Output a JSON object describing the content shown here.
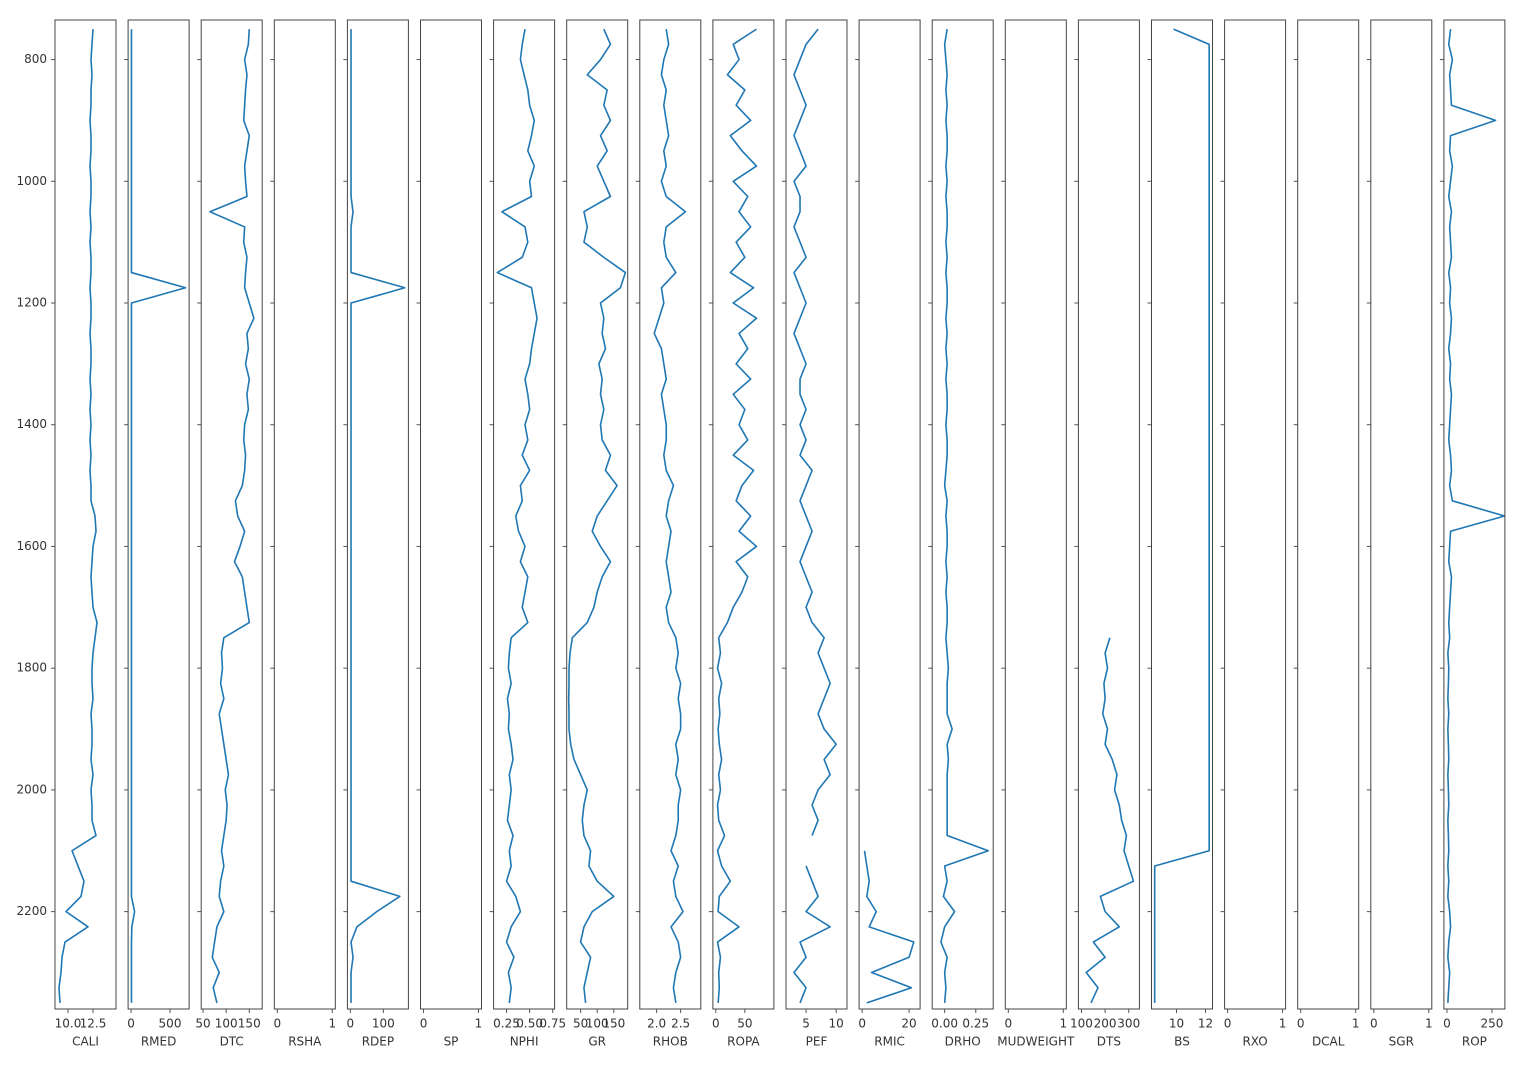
{
  "chart_data": {
    "type": "well_log",
    "color": "#1f77b4",
    "invert_y": true,
    "ylim": [
      735,
      2360
    ],
    "yticks": [
      800,
      1000,
      1200,
      1400,
      1600,
      1800,
      2000,
      2200
    ],
    "depth": [
      750,
      775,
      800,
      825,
      850,
      875,
      900,
      925,
      950,
      975,
      1000,
      1025,
      1050,
      1075,
      1100,
      1125,
      1150,
      1175,
      1200,
      1225,
      1250,
      1275,
      1300,
      1325,
      1350,
      1375,
      1400,
      1425,
      1450,
      1475,
      1500,
      1525,
      1550,
      1575,
      1600,
      1625,
      1650,
      1675,
      1700,
      1725,
      1750,
      1775,
      1800,
      1825,
      1850,
      1875,
      1900,
      1925,
      1950,
      1975,
      2000,
      2025,
      2050,
      2075,
      2100,
      2125,
      2150,
      2175,
      2200,
      2225,
      2250,
      2275,
      2300,
      2325,
      2350
    ],
    "tracks": [
      {
        "name": "CALI",
        "xlim": [
          8.7,
          14.8
        ],
        "xticks": [
          {
            "value": 10,
            "label": "10.0"
          },
          12.5
        ],
        "values": [
          12.5,
          12.4,
          12.3,
          12.4,
          12.3,
          12.3,
          12.2,
          12.3,
          12.3,
          12.2,
          12.3,
          12.3,
          12.2,
          12.3,
          12.2,
          12.3,
          12.3,
          12.2,
          12.3,
          12.3,
          12.2,
          12.3,
          12.3,
          12.2,
          12.3,
          12.2,
          12.3,
          12.2,
          12.3,
          12.2,
          12.3,
          12.3,
          12.7,
          12.8,
          12.5,
          12.4,
          12.3,
          12.4,
          12.5,
          12.9,
          12.7,
          12.5,
          12.4,
          12.4,
          12.5,
          12.3,
          12.4,
          12.4,
          12.3,
          12.5,
          12.3,
          12.4,
          12.4,
          12.8,
          10.4,
          11.0,
          11.6,
          11.3,
          9.8,
          12.0,
          9.7,
          9.4,
          9.3,
          9.1,
          9.2
        ]
      },
      {
        "name": "RMED",
        "xlim": [
          -38,
          745
        ],
        "xticks": [
          0,
          500
        ],
        "values": [
          5,
          5,
          5,
          5,
          5,
          5,
          5,
          5,
          5,
          5,
          5,
          5,
          5,
          5,
          5,
          5,
          5,
          700,
          5,
          5,
          5,
          5,
          5,
          5,
          5,
          5,
          5,
          5,
          5,
          5,
          5,
          5,
          5,
          5,
          5,
          5,
          5,
          5,
          5,
          5,
          5,
          5,
          5,
          5,
          5,
          5,
          5,
          5,
          5,
          5,
          5,
          5,
          5,
          5,
          5,
          5,
          5,
          5,
          45,
          10,
          5,
          5,
          5,
          5,
          5
        ]
      },
      {
        "name": "DTC",
        "xlim": [
          46,
          178
        ],
        "xticks": [
          50,
          100,
          150
        ],
        "values": [
          150,
          148,
          140,
          145,
          142,
          140,
          138,
          150,
          145,
          140,
          142,
          145,
          65,
          140,
          138,
          145,
          142,
          140,
          150,
          160,
          145,
          148,
          142,
          150,
          145,
          148,
          140,
          138,
          142,
          140,
          135,
          120,
          125,
          140,
          130,
          118,
          135,
          140,
          145,
          150,
          95,
          90,
          92,
          88,
          95,
          85,
          90,
          95,
          100,
          105,
          98,
          102,
          100,
          95,
          90,
          95,
          88,
          85,
          95,
          80,
          75,
          70,
          85,
          72,
          80
        ]
      },
      {
        "name": "RSHA",
        "xlim": [
          -0.055,
          1.055
        ],
        "xticks": [
          0,
          1
        ]
      },
      {
        "name": "RDEP",
        "xlim": [
          -9,
          176
        ],
        "xticks": [
          0,
          100
        ],
        "values": [
          2,
          2,
          2,
          2,
          2,
          2,
          2,
          2,
          2,
          2,
          2,
          2,
          8,
          2,
          2,
          2,
          2,
          165,
          2,
          2,
          2,
          2,
          2,
          2,
          2,
          2,
          2,
          2,
          2,
          2,
          2,
          2,
          2,
          2,
          2,
          2,
          2,
          2,
          2,
          2,
          2,
          2,
          2,
          2,
          2,
          2,
          2,
          2,
          2,
          2,
          2,
          2,
          2,
          2,
          2,
          2,
          2,
          150,
          80,
          20,
          2,
          8,
          2,
          2,
          2
        ]
      },
      {
        "name": "SP",
        "xlim": [
          -0.055,
          1.055
        ],
        "xticks": [
          0,
          1
        ]
      },
      {
        "name": "NPHI",
        "xlim": [
          0.11,
          0.77
        ],
        "xticks": [
          0.25,
          {
            "value": 0.5,
            "label": "0.50"
          },
          0.75
        ],
        "values": [
          0.45,
          0.42,
          0.4,
          0.44,
          0.48,
          0.5,
          0.55,
          0.52,
          0.48,
          0.55,
          0.5,
          0.52,
          0.2,
          0.45,
          0.48,
          0.42,
          0.15,
          0.52,
          0.55,
          0.58,
          0.55,
          0.52,
          0.5,
          0.45,
          0.48,
          0.5,
          0.45,
          0.48,
          0.42,
          0.5,
          0.4,
          0.42,
          0.35,
          0.38,
          0.45,
          0.4,
          0.48,
          0.45,
          0.42,
          0.48,
          0.3,
          0.28,
          0.27,
          0.3,
          0.26,
          0.28,
          0.27,
          0.3,
          0.32,
          0.28,
          0.3,
          0.28,
          0.26,
          0.32,
          0.28,
          0.3,
          0.25,
          0.35,
          0.4,
          0.3,
          0.25,
          0.33,
          0.27,
          0.3,
          0.28
        ]
      },
      {
        "name": "GR",
        "xlim": [
          8,
          192
        ],
        "xticks": [
          50,
          100,
          150
        ],
        "values": [
          120,
          140,
          110,
          70,
          130,
          120,
          140,
          110,
          130,
          100,
          120,
          140,
          60,
          70,
          60,
          120,
          185,
          170,
          110,
          120,
          115,
          125,
          105,
          115,
          110,
          120,
          110,
          115,
          140,
          125,
          160,
          130,
          100,
          85,
          110,
          140,
          115,
          100,
          90,
          70,
          25,
          18,
          15,
          15,
          14,
          15,
          15,
          20,
          30,
          50,
          70,
          60,
          55,
          60,
          80,
          75,
          100,
          150,
          85,
          60,
          50,
          80,
          70,
          60,
          65
        ]
      },
      {
        "name": "RHOB",
        "xlim": [
          1.65,
          2.92
        ],
        "xticks": [
          {
            "value": 2,
            "label": "2.0"
          },
          2.5
        ],
        "values": [
          2.2,
          2.25,
          2.15,
          2.1,
          2.2,
          2.15,
          2.2,
          2.25,
          2.15,
          2.2,
          2.1,
          2.2,
          2.6,
          2.2,
          2.15,
          2.2,
          2.4,
          2.1,
          2.15,
          2.05,
          1.95,
          2.1,
          2.15,
          2.2,
          2.1,
          2.15,
          2.2,
          2.2,
          2.15,
          2.2,
          2.35,
          2.25,
          2.2,
          2.3,
          2.25,
          2.2,
          2.25,
          2.3,
          2.2,
          2.25,
          2.4,
          2.45,
          2.4,
          2.5,
          2.45,
          2.5,
          2.5,
          2.4,
          2.45,
          2.4,
          2.5,
          2.45,
          2.45,
          2.4,
          2.3,
          2.45,
          2.35,
          2.4,
          2.55,
          2.3,
          2.45,
          2.5,
          2.4,
          2.35,
          2.4
        ]
      },
      {
        "name": "ROPA",
        "xlim": [
          -5,
          100
        ],
        "xticks": [
          0,
          50
        ],
        "values": [
          70,
          30,
          40,
          20,
          50,
          35,
          60,
          25,
          45,
          70,
          30,
          55,
          40,
          60,
          35,
          50,
          25,
          65,
          30,
          70,
          40,
          55,
          35,
          60,
          30,
          50,
          40,
          55,
          30,
          65,
          45,
          35,
          60,
          40,
          70,
          35,
          55,
          45,
          30,
          20,
          5,
          8,
          3,
          10,
          5,
          7,
          4,
          6,
          10,
          5,
          8,
          3,
          5,
          15,
          3,
          10,
          25,
          6,
          4,
          40,
          3,
          8,
          5,
          6,
          4
        ]
      },
      {
        "name": "PEF",
        "xlim": [
          1.67,
          11.8
        ],
        "xticks": [
          5,
          10
        ],
        "values": [
          7,
          5,
          4,
          3,
          4,
          5,
          4,
          3,
          4,
          5,
          3,
          4,
          4,
          3,
          4,
          5,
          3,
          4,
          5,
          4,
          3,
          4,
          5,
          4,
          4,
          5,
          4,
          5,
          4,
          6,
          5,
          4,
          5,
          6,
          5,
          4,
          5,
          6,
          5,
          6,
          8,
          7,
          8,
          9,
          8,
          7,
          8,
          10,
          8,
          9,
          7,
          6,
          7,
          6,
          null,
          5,
          6,
          7,
          5,
          9,
          4,
          5,
          3,
          5,
          4
        ]
      },
      {
        "name": "RMIC",
        "xlim": [
          -1.3,
          24.7
        ],
        "xticks": [
          0,
          20
        ],
        "values": [
          null,
          null,
          null,
          null,
          null,
          null,
          null,
          null,
          null,
          null,
          null,
          null,
          null,
          null,
          null,
          null,
          null,
          null,
          null,
          null,
          null,
          null,
          null,
          null,
          null,
          null,
          null,
          null,
          null,
          null,
          null,
          null,
          null,
          null,
          null,
          null,
          null,
          null,
          null,
          null,
          null,
          null,
          null,
          null,
          null,
          null,
          null,
          null,
          null,
          null,
          null,
          null,
          null,
          null,
          1,
          2,
          3,
          2,
          6,
          3,
          22,
          20,
          4,
          21,
          2
        ]
      },
      {
        "name": "DRHO",
        "xlim": [
          -0.1,
          0.39
        ],
        "xticks": [
          {
            "value": 0,
            "label": "0.00"
          },
          0.25
        ],
        "values": [
          0.02,
          0.0,
          0.01,
          0.02,
          0.01,
          0.02,
          0.01,
          0.02,
          0.02,
          0.01,
          0.02,
          0.01,
          0.02,
          0.02,
          0.01,
          0.02,
          0.01,
          0.02,
          0.02,
          0.01,
          0.02,
          0.01,
          0.02,
          0.01,
          0.02,
          0.02,
          0.01,
          0.02,
          0.02,
          0.01,
          0.0,
          0.02,
          0.01,
          0.02,
          0.02,
          0.01,
          0.02,
          0.01,
          0.02,
          0.02,
          0.01,
          0.02,
          0.03,
          0.02,
          0.02,
          0.02,
          0.06,
          0.02,
          0.03,
          0.02,
          0.02,
          0.02,
          0.02,
          0.02,
          0.35,
          0.0,
          0.02,
          -0.01,
          0.08,
          0.0,
          -0.03,
          0.02,
          0.0,
          0.01,
          0.0
        ]
      },
      {
        "name": "MUDWEIGHT",
        "xlim": [
          -0.055,
          1.055
        ],
        "xticks": [
          0,
          1
        ]
      },
      {
        "name": "DTS",
        "xlim": [
          87,
          345
        ],
        "xticks": [
          100,
          200,
          300
        ],
        "values": [
          null,
          null,
          null,
          null,
          null,
          null,
          null,
          null,
          null,
          null,
          null,
          null,
          null,
          null,
          null,
          null,
          null,
          null,
          null,
          null,
          null,
          null,
          null,
          null,
          null,
          null,
          null,
          null,
          null,
          null,
          null,
          null,
          null,
          null,
          null,
          null,
          null,
          null,
          null,
          null,
          220,
          200,
          210,
          195,
          200,
          190,
          210,
          200,
          230,
          250,
          240,
          260,
          270,
          290,
          280,
          300,
          320,
          180,
          200,
          260,
          150,
          200,
          120,
          170,
          140
        ]
      },
      {
        "name": "BS",
        "xlim": [
          8.28,
          12.48
        ],
        "xticks": [
          10,
          12
        ],
        "values": [
          9.8,
          12.25,
          12.25,
          12.25,
          12.25,
          12.25,
          12.25,
          12.25,
          12.25,
          12.25,
          12.25,
          12.25,
          12.25,
          12.25,
          12.25,
          12.25,
          12.25,
          12.25,
          12.25,
          12.25,
          12.25,
          12.25,
          12.25,
          12.25,
          12.25,
          12.25,
          12.25,
          12.25,
          12.25,
          12.25,
          12.25,
          12.25,
          12.25,
          12.25,
          12.25,
          12.25,
          12.25,
          12.25,
          12.25,
          12.25,
          12.25,
          12.25,
          12.25,
          12.25,
          12.25,
          12.25,
          12.25,
          12.25,
          12.25,
          12.25,
          12.25,
          12.25,
          12.25,
          12.25,
          12.25,
          8.5,
          8.5,
          8.5,
          8.5,
          8.5,
          8.5,
          8.5,
          8.5,
          8.5,
          8.5
        ]
      },
      {
        "name": "RXO",
        "xlim": [
          -0.055,
          1.055
        ],
        "xticks": [
          0,
          1
        ]
      },
      {
        "name": "DCAL",
        "xlim": [
          -0.055,
          1.055
        ],
        "xticks": [
          0,
          1
        ]
      },
      {
        "name": "SGR",
        "xlim": [
          -0.055,
          1.055
        ],
        "xticks": [
          0,
          1
        ]
      },
      {
        "name": "ROP",
        "xlim": [
          -17,
          322
        ],
        "xticks": [
          0,
          250
        ],
        "values": [
          20,
          10,
          30,
          15,
          20,
          25,
          270,
          20,
          15,
          30,
          20,
          10,
          25,
          15,
          20,
          25,
          10,
          20,
          15,
          25,
          20,
          10,
          20,
          15,
          25,
          20,
          15,
          10,
          20,
          25,
          15,
          30,
          320,
          20,
          15,
          10,
          25,
          20,
          15,
          10,
          15,
          5,
          10,
          8,
          5,
          10,
          5,
          8,
          10,
          5,
          8,
          10,
          5,
          8,
          10,
          5,
          10,
          5,
          15,
          20,
          10,
          5,
          15,
          10,
          5
        ]
      }
    ]
  }
}
